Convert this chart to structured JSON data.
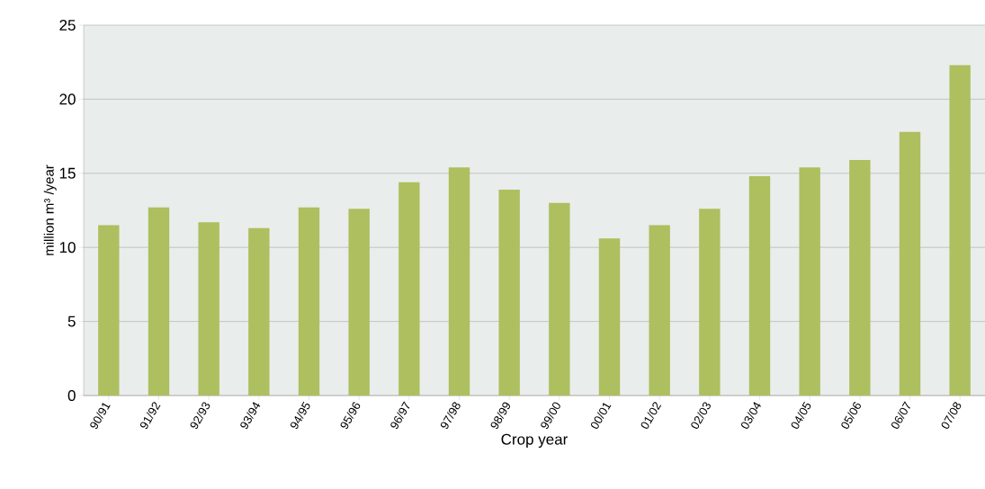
{
  "chart_data": {
    "type": "bar",
    "xlabel": "Crop  year",
    "ylabel": "million m³ /year",
    "categories": [
      "90/91",
      "91/92",
      "92/93",
      "93/94",
      "94/95",
      "95/96",
      "96/97",
      "97/98",
      "98/99",
      "99/00",
      "00/01",
      "01/02",
      "02/03",
      "03/04",
      "04/05",
      "05/06",
      "06/07",
      "07/08"
    ],
    "values": [
      11.5,
      12.7,
      11.7,
      11.3,
      12.7,
      12.6,
      14.4,
      15.4,
      13.9,
      13.0,
      10.6,
      11.5,
      12.6,
      14.8,
      15.4,
      15.9,
      17.8,
      22.3
    ],
    "color": "#adbf5f",
    "ylim": [
      0,
      25
    ],
    "yticks": [
      0,
      5,
      10,
      15,
      20,
      25
    ],
    "grid": "y"
  }
}
